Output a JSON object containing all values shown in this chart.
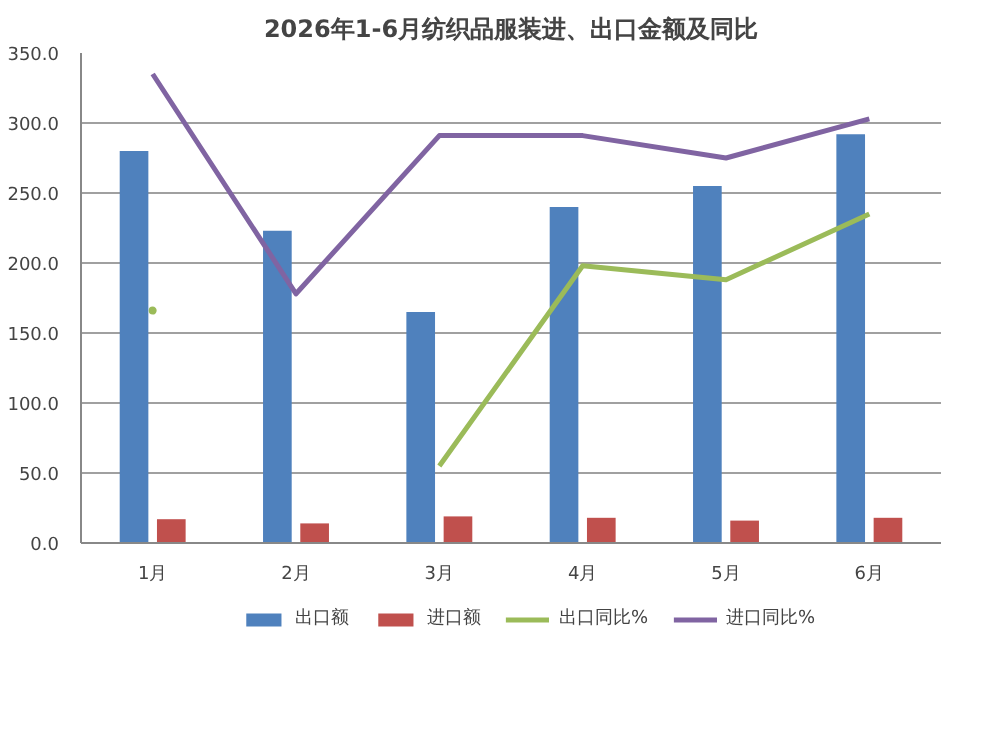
{
  "chart_data": {
    "type": "bar",
    "title": "2026年1-6月纺织品服装进、出口金额及同比",
    "categories": [
      "1月",
      "2月",
      "3月",
      "4月",
      "5月",
      "6月"
    ],
    "series": [
      {
        "name": "出口额",
        "color": "#4f81bd",
        "values": [
          280,
          223,
          165,
          240,
          255,
          292
        ]
      },
      {
        "name": "进口额",
        "color": "#c0504d",
        "values": [
          17,
          14,
          19,
          18,
          16,
          18
        ]
      },
      {
        "name": "出口同比%",
        "type": "line",
        "color": "#9bbb59",
        "values": [
          166,
          null,
          55,
          198,
          188,
          235
        ]
      },
      {
        "name": "进口同比%",
        "type": "line",
        "color": "#8064a2",
        "values": [
          335,
          178,
          291,
          291,
          275,
          303
        ]
      }
    ],
    "ylim": [
      0,
      350
    ],
    "yticks": [
      {
        "value": 0,
        "label": "0.0"
      },
      {
        "value": 50,
        "label": "50.0"
      },
      {
        "value": 100,
        "label": "100.0"
      },
      {
        "value": 150,
        "label": "150.0"
      },
      {
        "value": 200,
        "label": "200.0"
      },
      {
        "value": 250,
        "label": "250.0"
      },
      {
        "value": 300,
        "label": "300.0"
      },
      {
        "value": 350,
        "label": "350.0"
      }
    ],
    "grid": "y",
    "legend": "bottom",
    "marker": "none",
    "line_style": "solid"
  }
}
